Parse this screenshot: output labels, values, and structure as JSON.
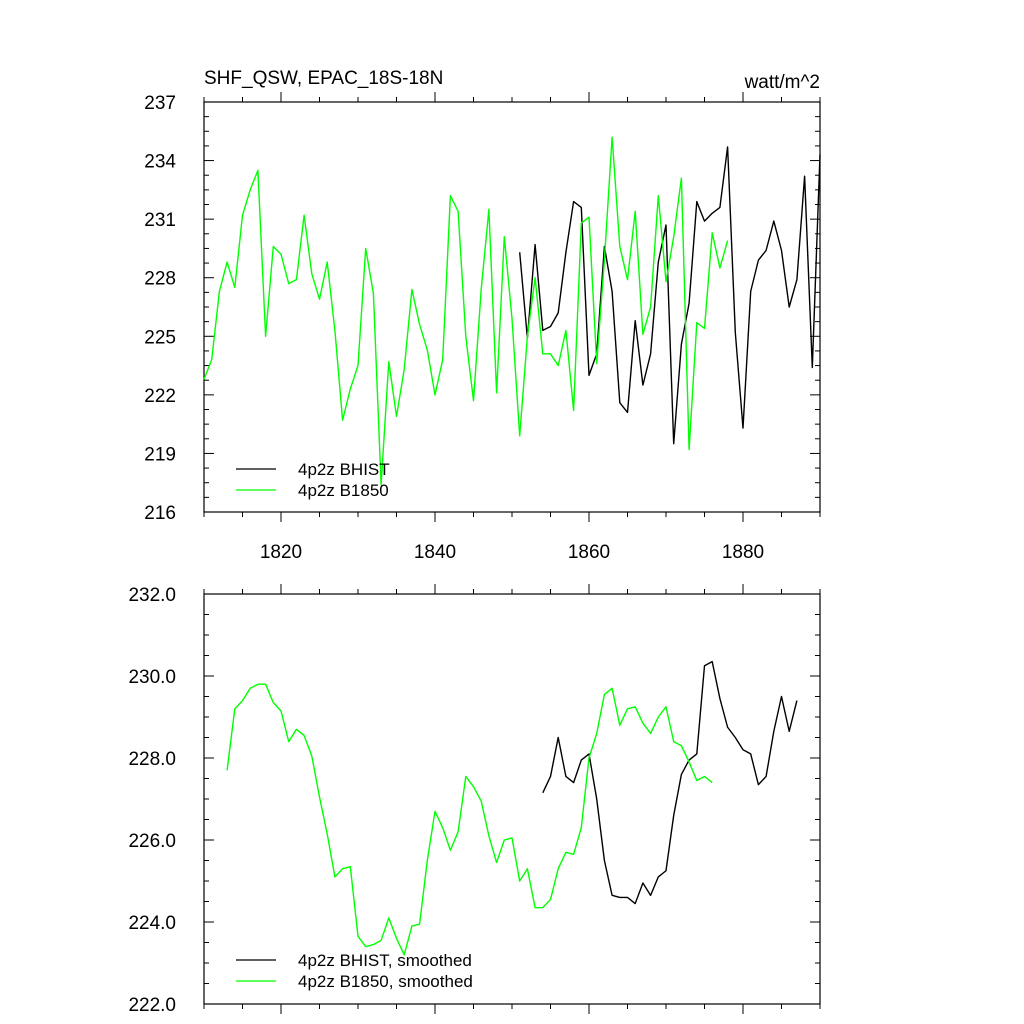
{
  "chart_data": [
    {
      "type": "line",
      "title": "SHF_QSW, EPAC_18S-18N",
      "units": "watt/m^2",
      "xlim": [
        1810,
        1890
      ],
      "ylim": [
        216,
        237
      ],
      "x_ticks": [
        1820,
        1840,
        1860,
        1880
      ],
      "x_tick_labels": [
        "1820",
        "1840",
        "1860",
        "1880"
      ],
      "y_ticks": [
        216,
        219,
        222,
        225,
        228,
        231,
        234,
        237
      ],
      "y_tick_labels": [
        "216",
        "219",
        "222",
        "225",
        "228",
        "231",
        "234",
        "237"
      ],
      "legend_position": "bottom-left",
      "series": [
        {
          "name": "4p2z BHIST",
          "color": "#000000",
          "x_start": 1851,
          "values": [
            229.3,
            224.9,
            229.7,
            225.3,
            225.5,
            226.2,
            229.3,
            231.9,
            231.6,
            223.0,
            224.1,
            229.6,
            227.3,
            221.6,
            221.1,
            225.8,
            222.5,
            224.1,
            228.8,
            230.7,
            219.5,
            224.6,
            226.7,
            231.9,
            230.9,
            231.3,
            231.6,
            234.7,
            225.2,
            220.3,
            227.3,
            228.9,
            229.4,
            230.9,
            229.4,
            226.5,
            227.9,
            233.2,
            223.4,
            234.3
          ]
        },
        {
          "name": "4p2z B1850",
          "color": "#00ff00",
          "x_start": 1810,
          "values": [
            222.8,
            223.8,
            227.3,
            228.8,
            227.5,
            231.2,
            232.5,
            233.5,
            225.0,
            229.6,
            229.2,
            227.7,
            227.9,
            231.2,
            228.2,
            226.9,
            228.8,
            225.3,
            220.7,
            222.3,
            223.5,
            229.5,
            227.2,
            217.4,
            223.7,
            220.9,
            223.3,
            227.4,
            225.6,
            224.3,
            222.0,
            223.8,
            232.2,
            231.4,
            225.0,
            221.7,
            227.4,
            231.5,
            222.1,
            230.1,
            225.9,
            219.9,
            225.0,
            228.0,
            224.1,
            224.1,
            223.5,
            225.3,
            221.2,
            230.8,
            231.1,
            223.6,
            228.9,
            235.2,
            229.6,
            227.9,
            231.4,
            225.1,
            226.5,
            232.2,
            227.8,
            230.1,
            233.1,
            219.2,
            225.7,
            225.4,
            230.3,
            228.5,
            229.9
          ]
        }
      ]
    },
    {
      "type": "line",
      "title": "",
      "xlim": [
        1810,
        1890
      ],
      "ylim": [
        222,
        232
      ],
      "x_ticks": [
        1820,
        1840,
        1860,
        1880
      ],
      "y_ticks": [
        222,
        224,
        226,
        228,
        230,
        232
      ],
      "y_tick_labels": [
        "222.0",
        "224.0",
        "226.0",
        "228.0",
        "230.0",
        "232.0"
      ],
      "legend_position": "bottom-left",
      "series": [
        {
          "name": "4p2z BHIST, smoothed",
          "color": "#000000",
          "x_start": 1854,
          "values": [
            227.15,
            227.55,
            228.5,
            227.55,
            227.4,
            227.95,
            228.1,
            227.0,
            225.5,
            224.65,
            224.6,
            224.6,
            224.45,
            224.95,
            224.65,
            225.1,
            225.25,
            226.6,
            227.6,
            227.95,
            228.1,
            230.25,
            230.35,
            229.45,
            228.75,
            228.5,
            228.2,
            228.1,
            227.35,
            227.55,
            228.65,
            229.5,
            228.65,
            229.4
          ]
        },
        {
          "name": "4p2z B1850, smoothed",
          "color": "#00ff00",
          "x_start": 1813,
          "values": [
            227.7,
            229.2,
            229.4,
            229.7,
            229.8,
            229.8,
            229.35,
            229.15,
            228.4,
            228.7,
            228.55,
            228.05,
            227.05,
            226.15,
            225.1,
            225.3,
            225.35,
            223.65,
            223.4,
            223.45,
            223.55,
            224.1,
            223.6,
            223.2,
            223.9,
            223.95,
            225.5,
            226.7,
            226.3,
            225.75,
            226.2,
            227.55,
            227.3,
            226.95,
            226.1,
            225.45,
            226.0,
            226.05,
            225.0,
            225.3,
            224.35,
            224.35,
            224.55,
            225.3,
            225.7,
            225.65,
            226.3,
            228.0,
            228.6,
            229.55,
            229.7,
            228.8,
            229.2,
            229.25,
            228.85,
            228.6,
            229.0,
            229.25,
            228.4,
            228.3,
            227.9,
            227.45,
            227.55,
            227.4
          ]
        }
      ]
    }
  ]
}
